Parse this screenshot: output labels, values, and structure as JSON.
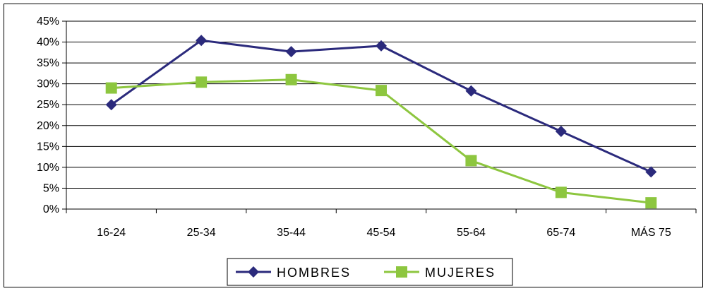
{
  "chart_data": {
    "type": "line",
    "categories": [
      "16-24",
      "25-34",
      "35-44",
      "45-54",
      "55-64",
      "65-74",
      "MÁS 75"
    ],
    "y_ticks": [
      "0%",
      "5%",
      "10%",
      "15%",
      "20%",
      "25%",
      "30%",
      "35%",
      "40%",
      "45%"
    ],
    "ylim": [
      0,
      45
    ],
    "grid": true,
    "legend_position": "bottom",
    "series": [
      {
        "name": "HOMBRES",
        "color": "#2b2a7c",
        "marker": "diamond",
        "values": [
          25.0,
          40.4,
          37.7,
          39.1,
          28.3,
          18.6,
          8.9
        ]
      },
      {
        "name": "MUJERES",
        "color": "#8dc63f",
        "marker": "square",
        "values": [
          29.0,
          30.4,
          31.0,
          28.4,
          11.6,
          4.0,
          1.5
        ]
      }
    ]
  }
}
